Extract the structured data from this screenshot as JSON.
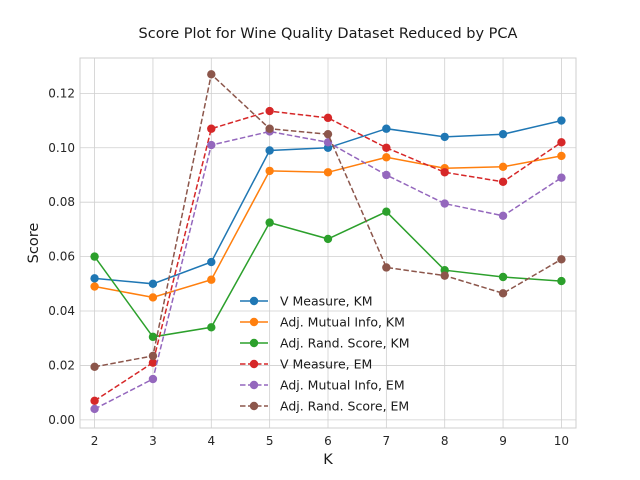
{
  "chart_data": {
    "type": "line",
    "title": "Score Plot for Wine Quality Dataset Reduced by PCA",
    "xlabel": "K",
    "ylabel": "Score",
    "x": [
      2,
      3,
      4,
      5,
      6,
      7,
      8,
      9,
      10
    ],
    "xlim": [
      1.75,
      10.25
    ],
    "ylim": [
      -0.003,
      0.133
    ],
    "yticks": [
      0.0,
      0.02,
      0.04,
      0.06,
      0.08,
      0.1,
      0.12
    ],
    "ytick_labels": [
      "0.00",
      "0.02",
      "0.04",
      "0.06",
      "0.08",
      "0.10",
      "0.12"
    ],
    "xtick_labels": [
      "2",
      "3",
      "4",
      "5",
      "6",
      "7",
      "8",
      "9",
      "10"
    ],
    "grid": true,
    "legend_position": "lower-center",
    "series": [
      {
        "name": "V Measure, KM",
        "color": "#1f77b4",
        "dash": "solid",
        "values": [
          0.052,
          0.05,
          0.058,
          0.099,
          0.1,
          0.107,
          0.104,
          0.105,
          0.11
        ]
      },
      {
        "name": "Adj. Mutual Info, KM",
        "color": "#ff7f0e",
        "dash": "solid",
        "values": [
          0.049,
          0.045,
          0.0515,
          0.0915,
          0.091,
          0.0965,
          0.0925,
          0.093,
          0.097
        ]
      },
      {
        "name": "Adj. Rand. Score, KM",
        "color": "#2ca02c",
        "dash": "solid",
        "values": [
          0.06,
          0.0305,
          0.034,
          0.0725,
          0.0665,
          0.0765,
          0.055,
          0.0525,
          0.051
        ]
      },
      {
        "name": "V Measure, EM",
        "color": "#d62728",
        "dash": "dashed",
        "values": [
          0.007,
          0.021,
          0.107,
          0.1135,
          0.111,
          0.1,
          0.091,
          0.0875,
          0.102
        ]
      },
      {
        "name": "Adj. Mutual Info, EM",
        "color": "#9467bd",
        "dash": "dashed",
        "values": [
          0.004,
          0.015,
          0.101,
          0.106,
          0.102,
          0.09,
          0.0795,
          0.075,
          0.089
        ]
      },
      {
        "name": "Adj. Rand. Score, EM",
        "color": "#8c564b",
        "dash": "dashed",
        "values": [
          0.0195,
          0.0235,
          0.127,
          0.107,
          0.105,
          0.056,
          0.053,
          0.0465,
          0.059
        ]
      }
    ]
  }
}
